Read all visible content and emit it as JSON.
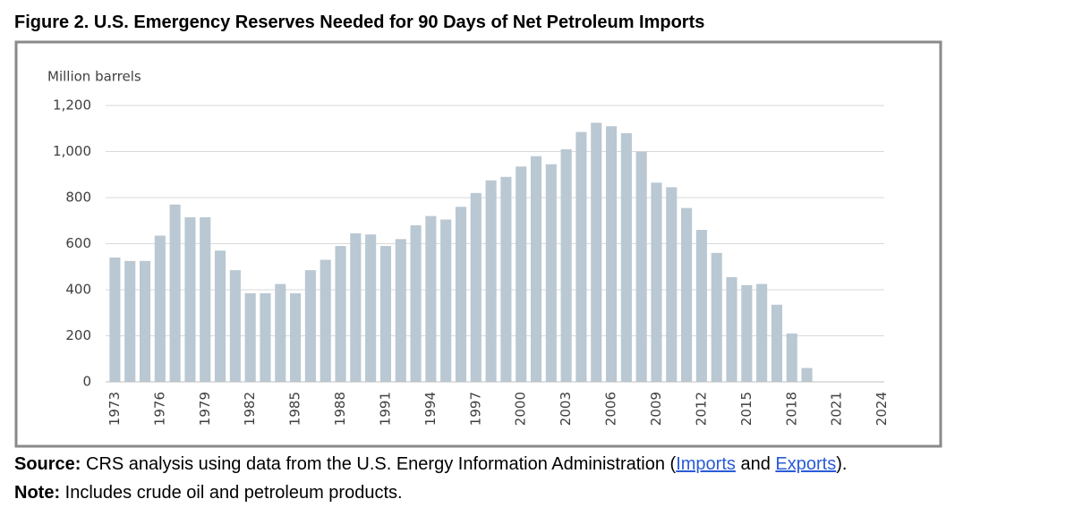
{
  "chart_data": {
    "type": "bar",
    "title": "Figure 2. U.S. Emergency Reserves Needed for 90 Days of Net Petroleum Imports",
    "y_label": "Million barrels",
    "categories": [
      "1973",
      null,
      null,
      "1976",
      null,
      null,
      "1979",
      null,
      null,
      "1982",
      null,
      null,
      "1985",
      null,
      null,
      "1988",
      null,
      null,
      "1991",
      null,
      null,
      "1994",
      null,
      null,
      "1997",
      null,
      null,
      "2000",
      null,
      null,
      "2003",
      null,
      null,
      "2006",
      null,
      null,
      "2009",
      null,
      null,
      "2012",
      null,
      null,
      "2015",
      null,
      null,
      "2018",
      null,
      null,
      "2021",
      null,
      null,
      "2024"
    ],
    "values": [
      540,
      525,
      525,
      635,
      770,
      715,
      715,
      570,
      485,
      385,
      385,
      425,
      385,
      485,
      530,
      590,
      645,
      640,
      590,
      620,
      680,
      720,
      705,
      760,
      820,
      875,
      890,
      935,
      980,
      945,
      1010,
      1085,
      1125,
      1110,
      1080,
      1000,
      865,
      845,
      755,
      660,
      560,
      455,
      420,
      425,
      335,
      210,
      60,
      0,
      0,
      0,
      0,
      0
    ],
    "color": "#b9c8d2",
    "ylim": [
      0,
      1200
    ],
    "yticks": [
      0,
      200,
      400,
      600,
      800,
      {
        "value": 1000,
        "label": "1,000"
      },
      {
        "value": 1200,
        "label": "1,200"
      }
    ],
    "grid": true
  },
  "footer": {
    "source": [
      "Source:",
      " CRS analysis using data from the U.S. Energy Information Administration (",
      "Imports",
      " and ",
      "Exports",
      ")."
    ],
    "note": [
      "Note:",
      " Includes crude oil and petroleum products."
    ]
  }
}
